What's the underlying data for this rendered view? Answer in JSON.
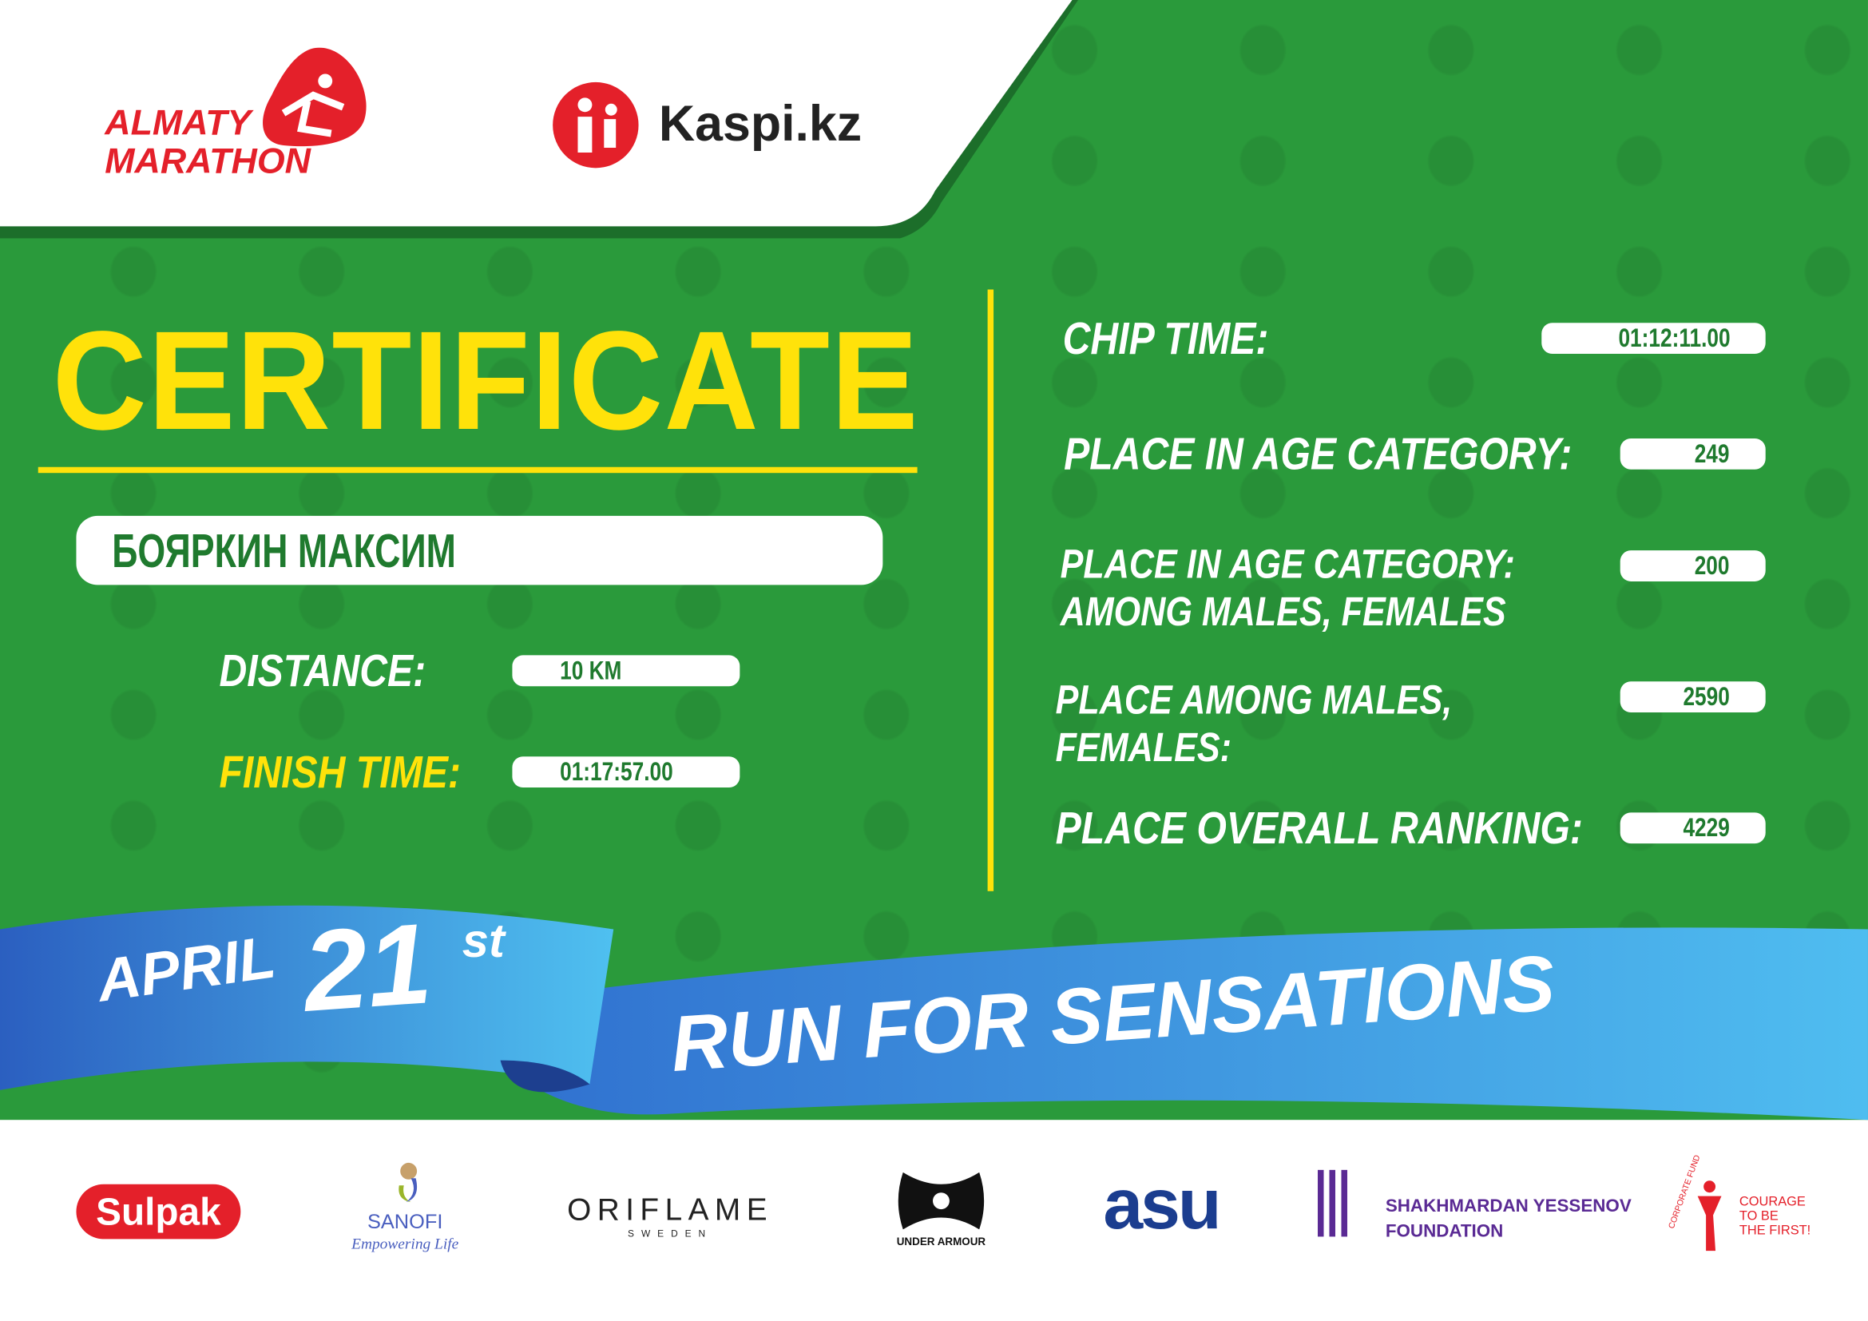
{
  "header": {
    "event_logo": {
      "line1": "ALMATY",
      "line2": "MARATHON"
    },
    "sponsor_logo": "Kaspi.kz"
  },
  "certificate": {
    "title": "CERTIFICATE",
    "participant_name": "БОЯРКИН МАКСИМ",
    "distance_label": "DISTANCE:",
    "distance_value": "10 KM",
    "finish_time_label": "FINISH TIME:",
    "finish_time_value": "01:17:57.00"
  },
  "results": [
    {
      "label": "CHIP TIME:",
      "value": "01:12:11.00"
    },
    {
      "label": "PLACE IN AGE CATEGORY:",
      "value": "249"
    },
    {
      "label": "PLACE IN AGE CATEGORY:\nAMONG MALES, FEMALES",
      "value": "200"
    },
    {
      "label": "PLACE AMONG MALES,\nFEMALES:",
      "value": "2590"
    },
    {
      "label": "PLACE OVERALL RANKING:",
      "value": "4229"
    }
  ],
  "banner": {
    "month": "APRIL",
    "day": "21",
    "suffix": "st",
    "slogan": "RUN FOR SENSATIONS"
  },
  "partners": {
    "sulpak": "Sulpak",
    "sanofi": "SANOFI",
    "sanofi_tagline": "Empowering Life",
    "oriflame": "ORIFLAME",
    "oriflame_sub": "SWEDEN",
    "under_armour": "UNDER ARMOUR",
    "asu": "asu",
    "yessenov": "SHAKHMARDAN YESSENOV",
    "yessenov_sub": "FOUNDATION",
    "fund_arc": "CORPORATE FUND",
    "fund_text": "COURAGE\nTO BE\nTHE FIRST!"
  },
  "colors": {
    "green": "#2a9a3b",
    "yellow": "#ffe20a",
    "red": "#e4202a",
    "blue": "#3a86d8"
  }
}
